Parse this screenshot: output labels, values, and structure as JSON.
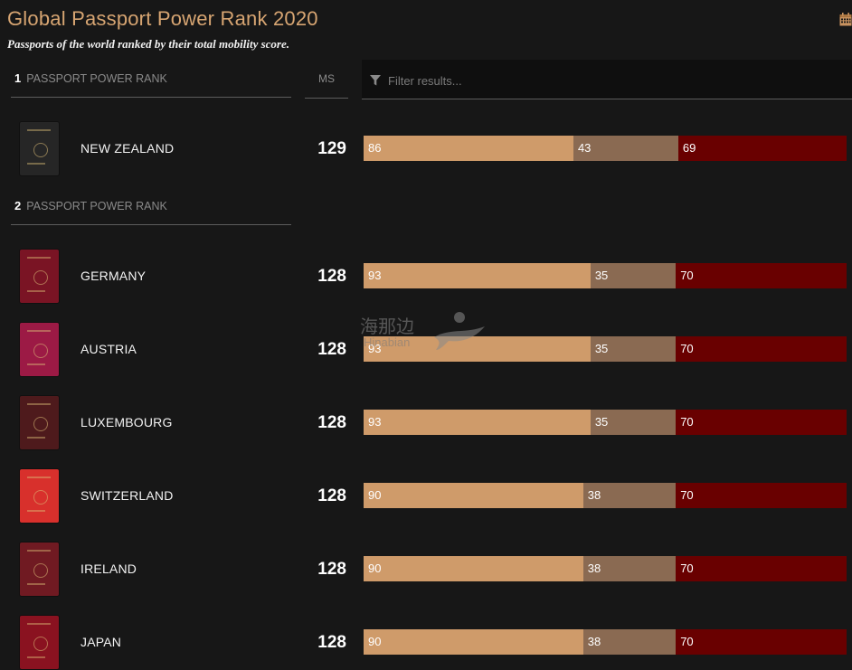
{
  "header": {
    "title": "Global Passport Power Rank 2020",
    "subtitle": "Passports of the world ranked by their total mobility score."
  },
  "columns": {
    "ms": "MS"
  },
  "filter": {
    "placeholder": "Filter results..."
  },
  "ranks": [
    {
      "rank": "1",
      "label": "PASSPORT POWER RANK"
    },
    {
      "rank": "2",
      "label": "PASSPORT POWER RANK"
    }
  ],
  "colors": {
    "seg1": "#cf9b6a",
    "seg2": "#8a6a52",
    "seg3": "#690000"
  },
  "countries": [
    {
      "name": "NEW ZEALAND",
      "ms": "129",
      "segments": [
        86,
        43,
        69
      ],
      "passport_color": "#262626"
    },
    {
      "name": "GERMANY",
      "ms": "128",
      "segments": [
        93,
        35,
        70
      ],
      "passport_color": "#7a1424"
    },
    {
      "name": "AUSTRIA",
      "ms": "128",
      "segments": [
        93,
        35,
        70
      ],
      "passport_color": "#9c1a45"
    },
    {
      "name": "LUXEMBOURG",
      "ms": "128",
      "segments": [
        93,
        35,
        70
      ],
      "passport_color": "#4e1a1c"
    },
    {
      "name": "SWITZERLAND",
      "ms": "128",
      "segments": [
        90,
        38,
        70
      ],
      "passport_color": "#d8302c"
    },
    {
      "name": "IRELAND",
      "ms": "128",
      "segments": [
        90,
        38,
        70
      ],
      "passport_color": "#701a22"
    },
    {
      "name": "JAPAN",
      "ms": "128",
      "segments": [
        90,
        38,
        70
      ],
      "passport_color": "#8a1220"
    }
  ],
  "watermark": {
    "cn": "海那边",
    "en": "Hinabian"
  }
}
